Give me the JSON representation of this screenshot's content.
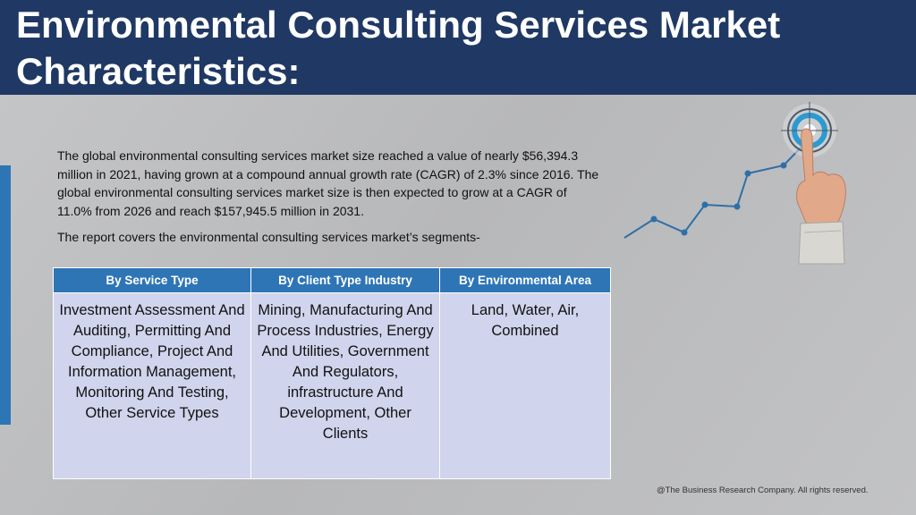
{
  "title": "Environmental Consulting Services Market Characteristics:",
  "intro": "The global environmental consulting services market size reached a value of nearly $56,394.3 million in 2021, having grown at a compound annual growth rate (CAGR) of 2.3% since 2016. The global environmental consulting services market size is then expected to grow at a CAGR of 11.0% from 2026 and reach $157,945.5 million in 2031.",
  "segments_note": "The report covers the environmental consulting services market’s segments-",
  "table": {
    "headers": [
      "By Service Type",
      "By Client Type Industry",
      "By Environmental Area"
    ],
    "cells": [
      "Investment Assessment And Auditing, Permitting And Compliance, Project And Information Management, Monitoring And Testing, Other Service Types",
      "Mining, Manufacturing And Process Industries, Energy And Utilities, Government And Regulators, infrastructure And Development, Other Clients",
      "Land, Water, Air, Combined"
    ]
  },
  "footer": "@The Business Research Company. All rights reserved.",
  "graphic": {
    "description_icon": "growth-chart-with-target-icon",
    "colors": {
      "title_bar": "#1f3864",
      "accent": "#2e75b6",
      "table_body": "#d0d4ec"
    }
  }
}
